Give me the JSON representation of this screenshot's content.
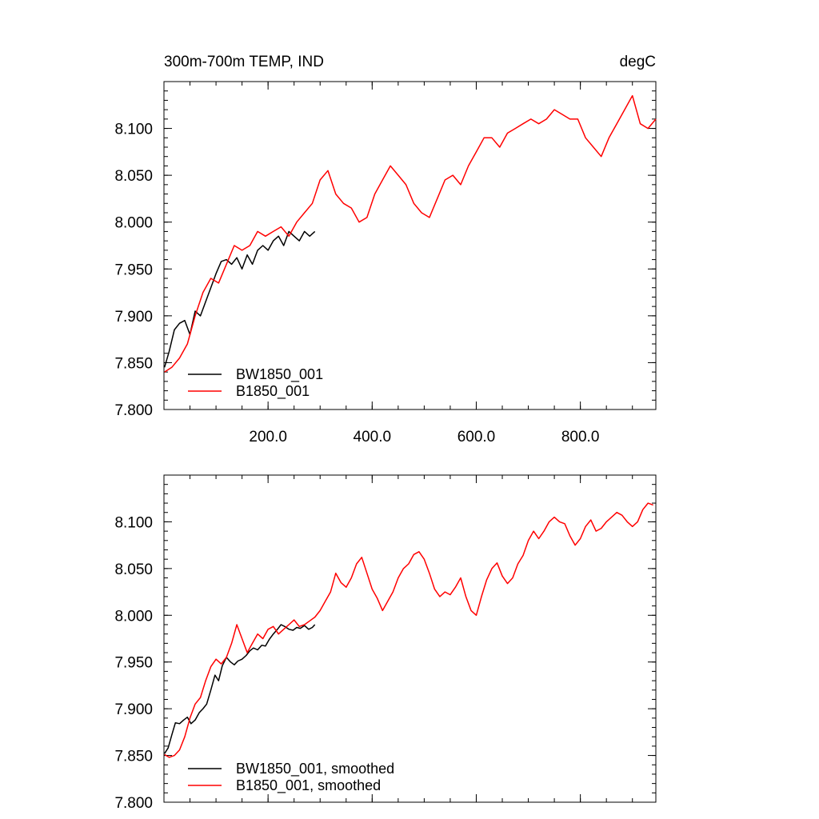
{
  "chart_data": [
    {
      "type": "line",
      "title": "300m-700m TEMP, IND",
      "units": "degC",
      "xlim": [
        0,
        945
      ],
      "ylim": [
        7.8,
        8.15
      ],
      "yticks": [
        "7.800",
        "7.850",
        "7.900",
        "7.950",
        "8.000",
        "8.050",
        "8.100"
      ],
      "ytick_values": [
        7.8,
        7.85,
        7.9,
        7.95,
        8.0,
        8.05,
        8.1
      ],
      "xticks": [
        "200.0",
        "400.0",
        "600.0",
        "800.0"
      ],
      "xtick_values": [
        200,
        400,
        600,
        800
      ],
      "legend_position": "bottom-left",
      "grid": false,
      "series": [
        {
          "name": "BW1850_001",
          "color": "#000000",
          "x": [
            1,
            10,
            20,
            30,
            40,
            50,
            60,
            70,
            80,
            90,
            100,
            110,
            120,
            130,
            140,
            150,
            160,
            170,
            180,
            190,
            200,
            210,
            220,
            230,
            240,
            250,
            260,
            270,
            280,
            290
          ],
          "y": [
            7.845,
            7.862,
            7.885,
            7.892,
            7.895,
            7.88,
            7.905,
            7.9,
            7.915,
            7.93,
            7.945,
            7.958,
            7.96,
            7.955,
            7.962,
            7.95,
            7.965,
            7.955,
            7.97,
            7.975,
            7.97,
            7.98,
            7.985,
            7.975,
            7.99,
            7.985,
            7.98,
            7.99,
            7.985,
            7.99
          ]
        },
        {
          "name": "B1850_001",
          "color": "#ff0000",
          "x": [
            1,
            15,
            30,
            45,
            60,
            75,
            90,
            105,
            120,
            135,
            150,
            165,
            180,
            195,
            210,
            225,
            240,
            255,
            270,
            285,
            300,
            315,
            330,
            345,
            360,
            375,
            390,
            405,
            420,
            435,
            450,
            465,
            480,
            495,
            510,
            525,
            540,
            555,
            570,
            585,
            600,
            615,
            630,
            645,
            660,
            675,
            690,
            705,
            720,
            735,
            750,
            765,
            780,
            795,
            810,
            825,
            840,
            855,
            870,
            885,
            900,
            915,
            930,
            945
          ],
          "y": [
            7.84,
            7.845,
            7.855,
            7.87,
            7.9,
            7.925,
            7.94,
            7.935,
            7.955,
            7.975,
            7.97,
            7.975,
            7.99,
            7.985,
            7.99,
            7.995,
            7.985,
            8.0,
            8.01,
            8.02,
            8.045,
            8.055,
            8.03,
            8.02,
            8.015,
            8.0,
            8.005,
            8.03,
            8.045,
            8.06,
            8.05,
            8.04,
            8.02,
            8.01,
            8.005,
            8.025,
            8.045,
            8.05,
            8.04,
            8.06,
            8.075,
            8.09,
            8.09,
            8.08,
            8.095,
            8.1,
            8.105,
            8.11,
            8.105,
            8.11,
            8.12,
            8.115,
            8.11,
            8.11,
            8.09,
            8.08,
            8.07,
            8.09,
            8.105,
            8.12,
            8.135,
            8.105,
            8.1,
            8.11
          ]
        }
      ]
    },
    {
      "type": "line",
      "xlim": [
        0,
        945
      ],
      "ylim": [
        7.8,
        8.15
      ],
      "yticks": [
        "7.800",
        "7.850",
        "7.900",
        "7.950",
        "8.000",
        "8.050",
        "8.100"
      ],
      "ytick_values": [
        7.8,
        7.85,
        7.9,
        7.95,
        8.0,
        8.05,
        8.1
      ],
      "xtick_values": [
        200,
        400,
        600,
        800
      ],
      "legend_position": "bottom-left",
      "grid": false,
      "series": [
        {
          "name": "BW1850_001, smoothed",
          "color": "#000000",
          "x": [
            1,
            8,
            15,
            22,
            30,
            38,
            45,
            52,
            60,
            68,
            75,
            82,
            90,
            98,
            105,
            112,
            120,
            128,
            135,
            142,
            150,
            158,
            165,
            172,
            180,
            188,
            195,
            202,
            210,
            218,
            225,
            232,
            240,
            248,
            255,
            262,
            270,
            278,
            285,
            290
          ],
          "y": [
            7.852,
            7.858,
            7.872,
            7.885,
            7.884,
            7.888,
            7.891,
            7.884,
            7.888,
            7.896,
            7.9,
            7.905,
            7.92,
            7.936,
            7.93,
            7.946,
            7.955,
            7.95,
            7.947,
            7.951,
            7.953,
            7.957,
            7.962,
            7.965,
            7.963,
            7.968,
            7.967,
            7.974,
            7.98,
            7.985,
            7.99,
            7.988,
            7.985,
            7.984,
            7.987,
            7.986,
            7.989,
            7.985,
            7.987,
            7.99
          ]
        },
        {
          "name": "B1850_001, smoothed",
          "color": "#ff0000",
          "x": [
            1,
            10,
            20,
            30,
            40,
            50,
            60,
            70,
            80,
            90,
            100,
            110,
            120,
            130,
            140,
            150,
            160,
            170,
            180,
            190,
            200,
            210,
            220,
            230,
            240,
            250,
            260,
            270,
            280,
            290,
            300,
            310,
            320,
            330,
            340,
            350,
            360,
            370,
            380,
            390,
            400,
            410,
            420,
            430,
            440,
            450,
            460,
            470,
            480,
            490,
            500,
            510,
            520,
            530,
            540,
            550,
            560,
            570,
            580,
            590,
            600,
            610,
            620,
            630,
            640,
            650,
            660,
            670,
            680,
            690,
            700,
            710,
            720,
            730,
            740,
            750,
            760,
            770,
            780,
            790,
            800,
            810,
            820,
            830,
            840,
            850,
            860,
            870,
            880,
            890,
            900,
            910,
            920,
            930,
            940
          ],
          "y": [
            7.851,
            7.848,
            7.85,
            7.856,
            7.87,
            7.89,
            7.905,
            7.912,
            7.93,
            7.945,
            7.953,
            7.948,
            7.955,
            7.97,
            7.99,
            7.975,
            7.96,
            7.97,
            7.98,
            7.975,
            7.985,
            7.988,
            7.98,
            7.985,
            7.99,
            7.995,
            7.988,
            7.99,
            7.994,
            7.998,
            8.005,
            8.015,
            8.025,
            8.045,
            8.035,
            8.03,
            8.04,
            8.055,
            8.062,
            8.045,
            8.028,
            8.018,
            8.005,
            8.015,
            8.025,
            8.04,
            8.05,
            8.055,
            8.065,
            8.068,
            8.06,
            8.045,
            8.028,
            8.02,
            8.025,
            8.022,
            8.03,
            8.04,
            8.02,
            8.005,
            8.0,
            8.02,
            8.038,
            8.05,
            8.056,
            8.042,
            8.034,
            8.04,
            8.055,
            8.064,
            8.08,
            8.09,
            8.082,
            8.09,
            8.1,
            8.105,
            8.1,
            8.098,
            8.085,
            8.075,
            8.082,
            8.095,
            8.102,
            8.09,
            8.093,
            8.1,
            8.105,
            8.11,
            8.107,
            8.1,
            8.095,
            8.1,
            8.113,
            8.12,
            8.118
          ]
        }
      ]
    }
  ]
}
